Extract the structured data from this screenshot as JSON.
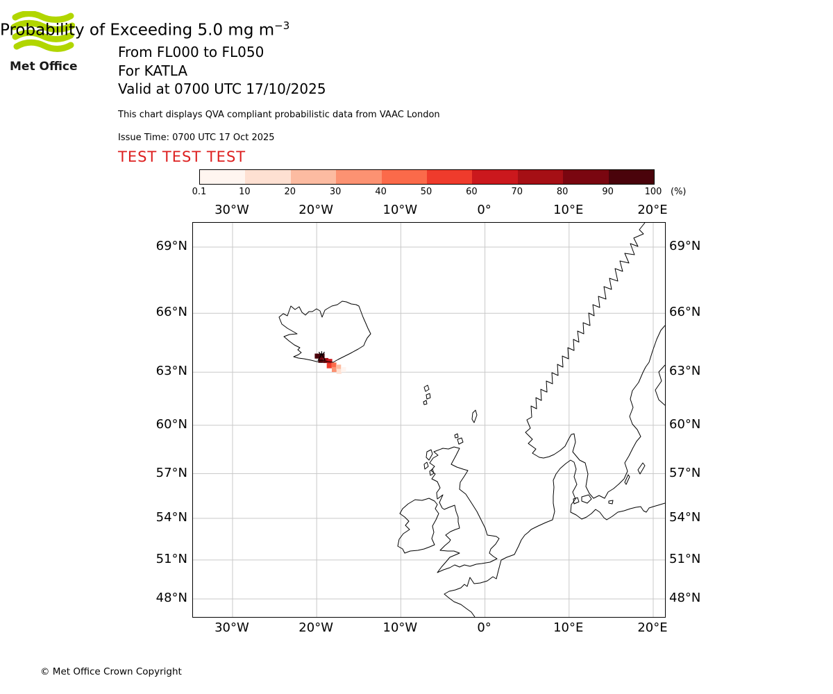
{
  "logo": {
    "text": "Met Office",
    "brand_green": "#b1d600"
  },
  "header": {
    "title_main": "Probability of Exceeding 5.0 mg m",
    "title_exponent": "−3",
    "subtitle1": "From FL000 to FL050",
    "subtitle2": "For KATLA",
    "subtitle3": "Valid at 0700 UTC 17/10/2025",
    "description": "This chart displays QVA compliant probabilistic data from VAAC London",
    "issue_time": "Issue Time: 0700 UTC 17 Oct 2025",
    "test_banner": "TEST TEST TEST",
    "test_banner_color": "#dd1f1f"
  },
  "map": {
    "lon_labels": [
      "30°W",
      "20°W",
      "10°W",
      "0°",
      "10°E",
      "20°E"
    ],
    "lat_labels": [
      "69°N",
      "66°N",
      "63°N",
      "60°N",
      "57°N",
      "54°N",
      "51°N",
      "48°N"
    ]
  },
  "footer": {
    "copyright": "© Met Office Crown Copyright"
  },
  "chart_data": {
    "type": "heatmap",
    "title": "Probability of Exceeding 5.0 mg m^-3",
    "flight_levels": "FL000 to FL050",
    "volcano": "KATLA",
    "valid_time": "0700 UTC 17/10/2025",
    "issue_time": "0700 UTC 17 Oct 2025",
    "source": "VAAC London",
    "colorbar": {
      "unit_label": "(%)",
      "ticks": [
        0.1,
        10,
        20,
        30,
        40,
        50,
        60,
        70,
        80,
        90,
        100
      ],
      "colors": [
        "#fff5f0",
        "#fee0d2",
        "#fcbba1",
        "#fc9272",
        "#fb6a4a",
        "#ef3b2c",
        "#cb181d",
        "#a50f15",
        "#7a0610",
        "#4a030b"
      ]
    },
    "map_extent": {
      "projection": "mercator",
      "lon_min": -34.7,
      "lon_max": 21.4,
      "lat_min": 46.6,
      "lat_max": 70.0,
      "lon_gridlines": [
        -30,
        -20,
        -10,
        0,
        10,
        20
      ],
      "lat_gridlines": [
        69,
        66,
        63,
        60,
        57,
        54,
        51,
        48
      ],
      "gridline_color": "#c9c9c9"
    },
    "volcano_location": {
      "lon": -19.4,
      "lat": 63.78
    },
    "plume_cells": [
      {
        "lon": -19.93,
        "lat": 63.85,
        "prob": 99
      },
      {
        "lon": -19.35,
        "lat": 63.86,
        "prob": 99
      },
      {
        "lon": -19.5,
        "lat": 63.63,
        "prob": 88
      },
      {
        "lon": -18.9,
        "lat": 63.62,
        "prob": 75
      },
      {
        "lon": -18.45,
        "lat": 63.57,
        "prob": 65
      },
      {
        "lon": -18.5,
        "lat": 63.34,
        "prob": 55
      },
      {
        "lon": -17.95,
        "lat": 63.38,
        "prob": 45
      },
      {
        "lon": -17.9,
        "lat": 63.14,
        "prob": 35
      },
      {
        "lon": -17.4,
        "lat": 63.27,
        "prob": 25
      },
      {
        "lon": -17.35,
        "lat": 63.04,
        "prob": 15
      },
      {
        "lon": -16.8,
        "lat": 63.14,
        "prob": 5
      }
    ]
  }
}
